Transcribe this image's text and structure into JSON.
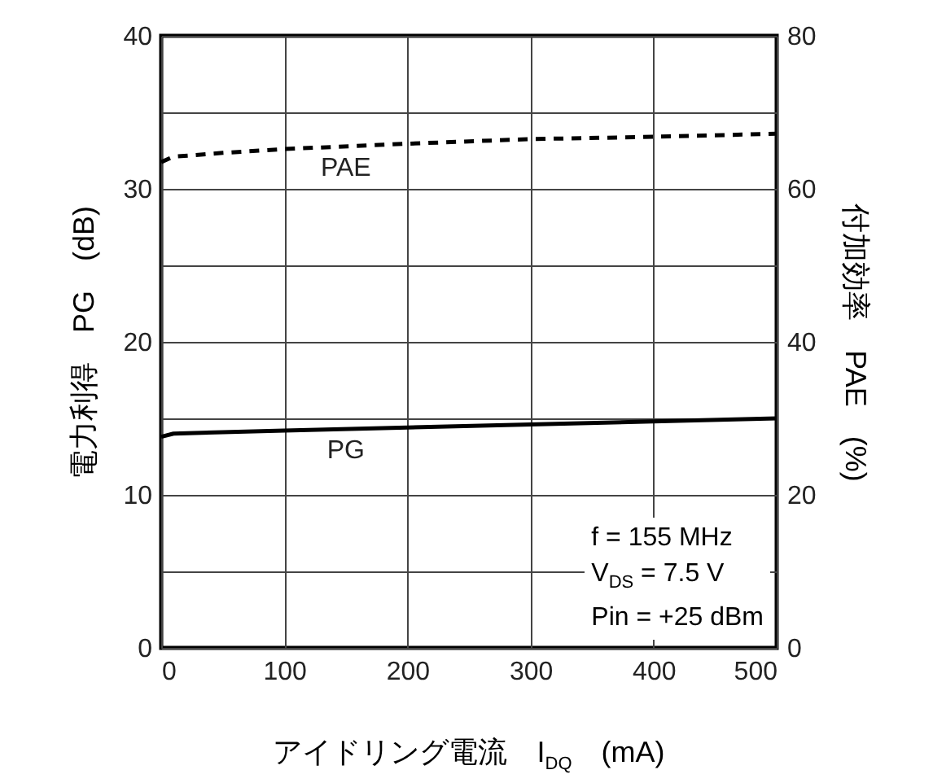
{
  "chart_data": {
    "type": "line",
    "ylabel": "電力利得　PG　(dB)",
    "y2label": "付加効率　PAE　(%)",
    "xlabel": "アイドリング電流　I$_{DQ}$　(mA)",
    "xlim": [
      0,
      500
    ],
    "xticks": [
      0,
      100,
      200,
      300,
      400,
      500
    ],
    "ylim": [
      0,
      40
    ],
    "yticks": [
      0,
      {
        "value": 5,
        "label": null
      },
      10,
      {
        "value": 15,
        "label": null
      },
      20,
      {
        "value": 25,
        "label": null
      },
      30,
      {
        "value": 35,
        "label": null
      },
      40
    ],
    "y2lim": [
      0,
      80
    ],
    "y2ticks": [
      0,
      20,
      40,
      60,
      80
    ],
    "grid": true,
    "marker": "none",
    "annotations": [
      "f = 155 MHz\nV$_{DS}$ = 7.5 V\nPin = +25 dBm"
    ],
    "series": [
      {
        "name": "PG",
        "color": "#000000",
        "line_style": "solid",
        "x": [
          0,
          10,
          50,
          100,
          200,
          300,
          400,
          500
        ],
        "values": [
          13.8,
          14.0,
          14.1,
          14.2,
          14.4,
          14.6,
          14.8,
          15.0
        ]
      },
      {
        "name": "PAE",
        "color": "#000000",
        "line_style": "dashed",
        "axis": "y2",
        "x": [
          0,
          10,
          50,
          100,
          200,
          300,
          400,
          500
        ],
        "values": [
          63.5,
          64.2,
          64.7,
          65.2,
          65.9,
          66.5,
          66.8,
          67.2
        ]
      }
    ]
  }
}
